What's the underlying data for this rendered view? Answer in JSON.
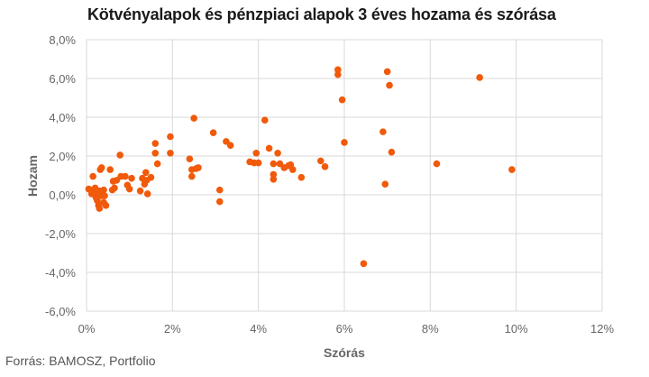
{
  "title": "Kötvényalapok és pénzpiaci alapok 3 éves hozama és szórása",
  "source": "Forrás: BAMOSZ, Portfolio",
  "colors": {
    "point": "#f05a0a",
    "grid": "#d9d9d9",
    "axis_text": "#666666"
  },
  "chart_data": {
    "type": "scatter",
    "xlabel": "Szórás",
    "ylabel": "Hozam",
    "xlim": [
      0,
      12
    ],
    "ylim": [
      -6,
      8
    ],
    "x_ticks": [
      "0%",
      "2%",
      "4%",
      "6%",
      "8%",
      "10%",
      "12%"
    ],
    "y_ticks": [
      "8,0%",
      "6,0%",
      "4,0%",
      "2,0%",
      "0,0%",
      "-2,0%",
      "-4,0%",
      "-6,0%"
    ],
    "grid": true,
    "legend": "none",
    "points": [
      [
        0.05,
        0.3
      ],
      [
        0.1,
        0.25
      ],
      [
        0.15,
        0.95
      ],
      [
        0.12,
        0.05
      ],
      [
        0.18,
        0.15
      ],
      [
        0.2,
        0.35
      ],
      [
        0.25,
        -0.3
      ],
      [
        0.2,
        0.05
      ],
      [
        0.22,
        -0.15
      ],
      [
        0.28,
        -0.55
      ],
      [
        0.3,
        0.2
      ],
      [
        0.32,
        1.3
      ],
      [
        0.35,
        1.4
      ],
      [
        0.38,
        0.0
      ],
      [
        0.4,
        -0.4
      ],
      [
        0.4,
        0.25
      ],
      [
        0.42,
        -0.05
      ],
      [
        0.45,
        -0.55
      ],
      [
        0.3,
        -0.7
      ],
      [
        0.35,
        -0.05
      ],
      [
        0.55,
        1.3
      ],
      [
        0.6,
        0.25
      ],
      [
        0.62,
        0.7
      ],
      [
        0.65,
        0.35
      ],
      [
        0.7,
        0.75
      ],
      [
        0.78,
        2.05
      ],
      [
        0.8,
        0.95
      ],
      [
        0.9,
        0.95
      ],
      [
        0.95,
        0.5
      ],
      [
        1.0,
        0.3
      ],
      [
        1.05,
        0.85
      ],
      [
        1.25,
        0.2
      ],
      [
        1.3,
        0.85
      ],
      [
        1.35,
        0.55
      ],
      [
        1.38,
        1.15
      ],
      [
        1.4,
        0.75
      ],
      [
        1.42,
        0.05
      ],
      [
        1.5,
        0.9
      ],
      [
        1.6,
        2.65
      ],
      [
        1.6,
        2.15
      ],
      [
        1.65,
        1.6
      ],
      [
        1.95,
        3.0
      ],
      [
        1.95,
        2.15
      ],
      [
        2.4,
        1.85
      ],
      [
        2.45,
        0.95
      ],
      [
        2.45,
        1.3
      ],
      [
        2.5,
        3.95
      ],
      [
        2.55,
        1.35
      ],
      [
        2.6,
        1.4
      ],
      [
        2.95,
        3.2
      ],
      [
        3.1,
        0.25
      ],
      [
        3.1,
        -0.35
      ],
      [
        3.25,
        2.75
      ],
      [
        3.35,
        2.55
      ],
      [
        3.8,
        1.7
      ],
      [
        3.9,
        1.65
      ],
      [
        3.95,
        2.15
      ],
      [
        4.0,
        1.65
      ],
      [
        4.15,
        3.85
      ],
      [
        4.25,
        2.4
      ],
      [
        4.35,
        1.6
      ],
      [
        4.35,
        1.05
      ],
      [
        4.35,
        0.8
      ],
      [
        4.45,
        2.15
      ],
      [
        4.5,
        1.6
      ],
      [
        4.6,
        1.4
      ],
      [
        4.7,
        1.5
      ],
      [
        4.75,
        1.55
      ],
      [
        4.8,
        1.3
      ],
      [
        5.0,
        0.9
      ],
      [
        5.45,
        1.75
      ],
      [
        5.55,
        1.45
      ],
      [
        5.85,
        6.2
      ],
      [
        5.85,
        6.45
      ],
      [
        5.95,
        4.9
      ],
      [
        6.0,
        2.7
      ],
      [
        6.45,
        -3.55
      ],
      [
        6.9,
        3.25
      ],
      [
        6.95,
        0.55
      ],
      [
        7.0,
        6.35
      ],
      [
        7.05,
        5.65
      ],
      [
        7.1,
        2.2
      ],
      [
        8.15,
        1.6
      ],
      [
        9.15,
        6.05
      ],
      [
        9.9,
        1.3
      ]
    ]
  }
}
